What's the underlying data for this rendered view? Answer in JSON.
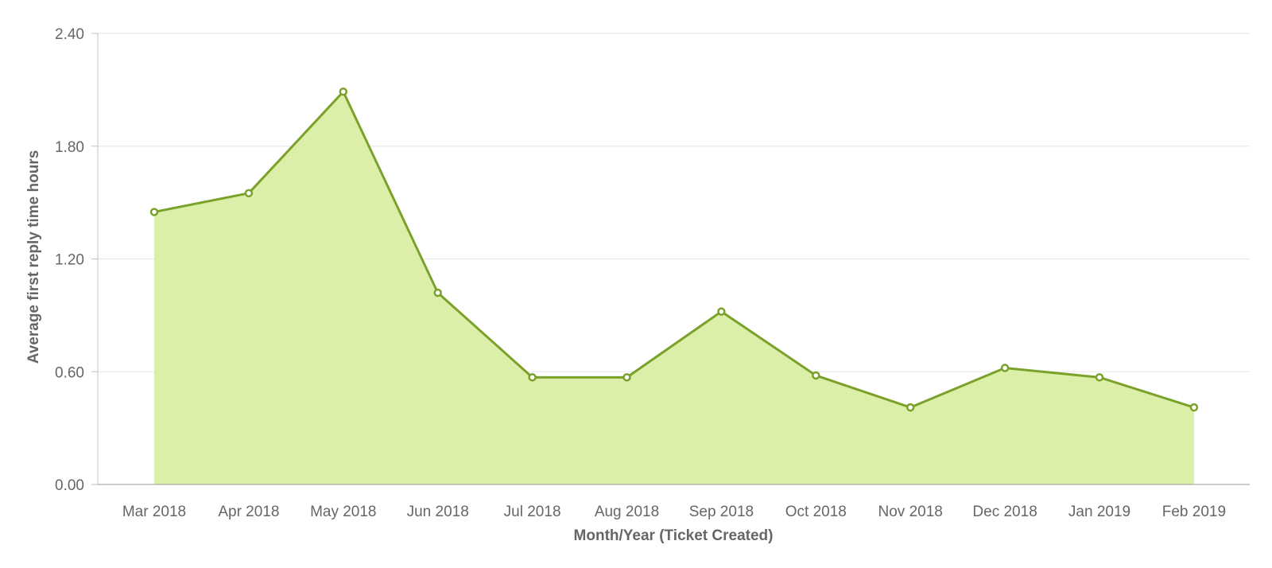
{
  "chart_data": {
    "type": "area",
    "title": "",
    "xlabel": "Month/Year (Ticket Created)",
    "ylabel": "Average first reply time hours",
    "categories": [
      "Mar 2018",
      "Apr 2018",
      "May 2018",
      "Jun 2018",
      "Jul 2018",
      "Aug 2018",
      "Sep 2018",
      "Oct 2018",
      "Nov 2018",
      "Dec 2018",
      "Jan 2019",
      "Feb 2019"
    ],
    "series": [
      {
        "values": [
          1.45,
          1.55,
          2.09,
          1.02,
          0.57,
          0.57,
          0.92,
          0.58,
          0.41,
          0.62,
          0.57,
          0.41
        ]
      }
    ],
    "yticks": [
      "0.00",
      "0.60",
      "1.20",
      "1.80",
      "2.40"
    ],
    "ylim": [
      0,
      2.4
    ],
    "grid": true,
    "legend": "none",
    "colors": {
      "line": "#7aa22b",
      "fill": "#dcefa8",
      "grid": "#e6e6e6",
      "axis": "#c0c0c0",
      "text": "#666666"
    }
  }
}
